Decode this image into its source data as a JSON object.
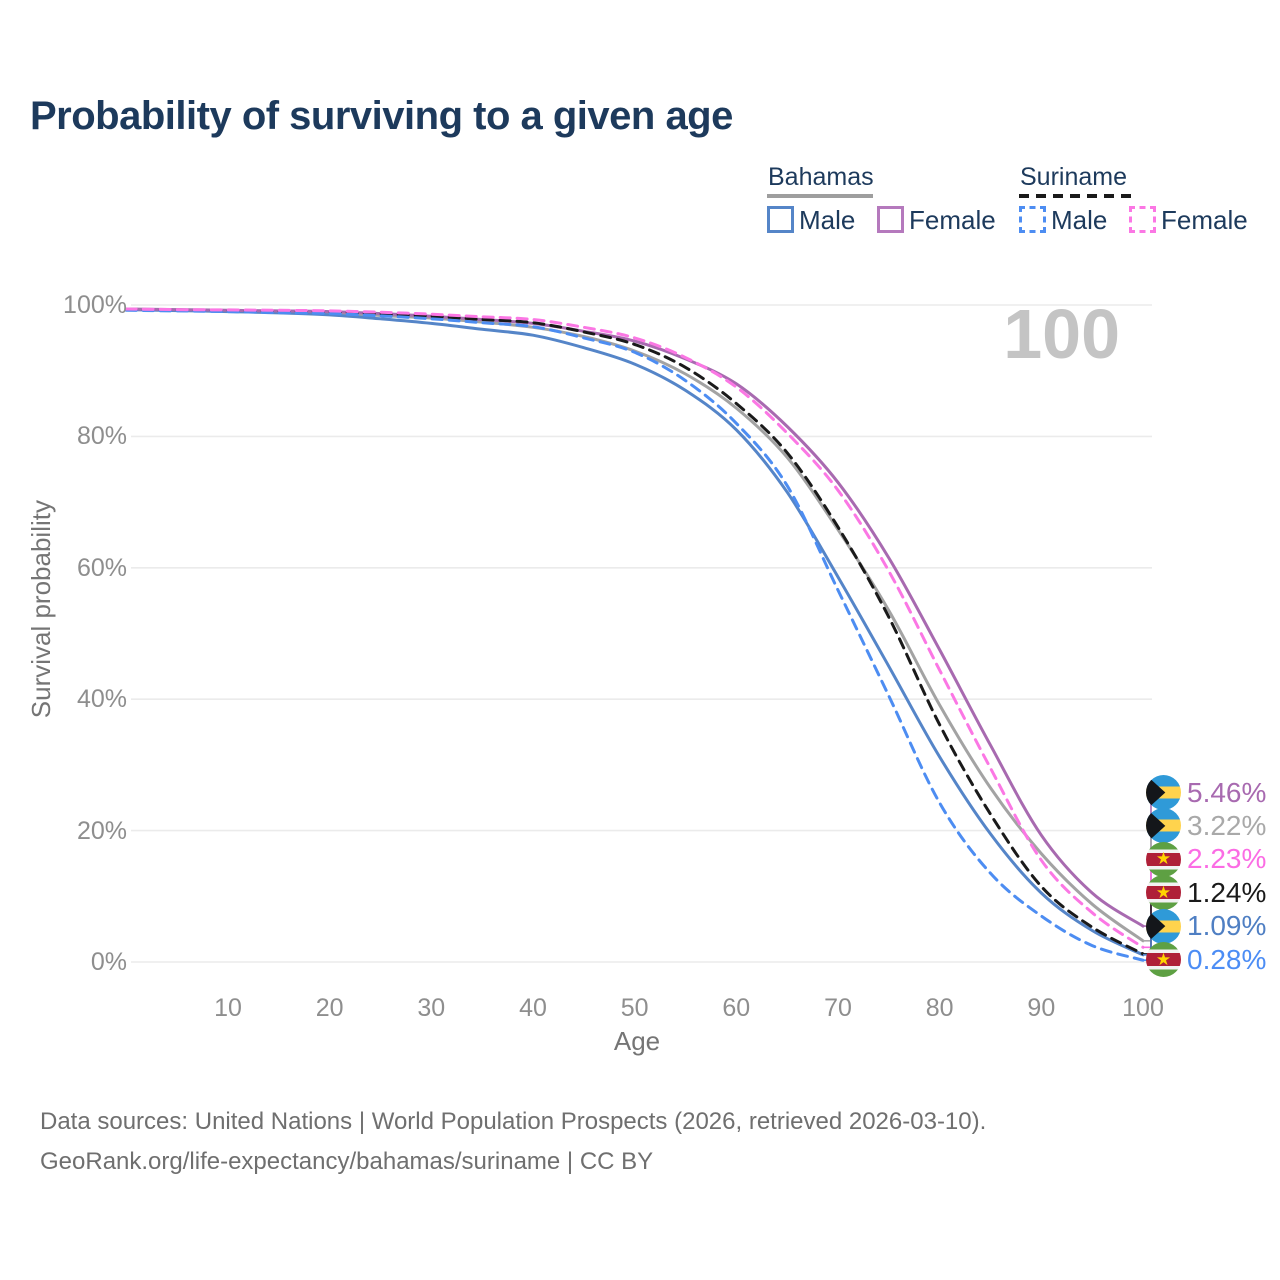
{
  "title": "Probability of surviving to a given age",
  "legend": {
    "groups": [
      {
        "name": "Bahamas",
        "line_style": "solid",
        "underline_color": "#9e9e9e",
        "items": [
          {
            "label": "Male",
            "color": "#5585c8",
            "dashed": false
          },
          {
            "label": "Female",
            "color": "#b579bd",
            "dashed": false
          }
        ]
      },
      {
        "name": "Suriname",
        "line_style": "dashed",
        "underline_color": "#1a1a1a",
        "items": [
          {
            "label": "Male",
            "color": "#4d8df2",
            "dashed": true
          },
          {
            "label": "Female",
            "color": "#fb77e4",
            "dashed": true
          }
        ]
      }
    ]
  },
  "watermark": "100",
  "axes": {
    "y_label": "Survival probability",
    "x_label": "Age",
    "y_ticks": [
      {
        "label": "100%",
        "value": 100
      },
      {
        "label": "80%",
        "value": 80
      },
      {
        "label": "60%",
        "value": 60
      },
      {
        "label": "40%",
        "value": 40
      },
      {
        "label": "20%",
        "value": 20
      },
      {
        "label": "0%",
        "value": 0
      }
    ],
    "x_ticks": [
      10,
      20,
      30,
      40,
      50,
      60,
      70,
      80,
      90,
      100
    ]
  },
  "chart_data": {
    "type": "line",
    "title": "Probability of surviving to a given age",
    "xlabel": "Age",
    "ylabel": "Survival probability",
    "xlim": [
      0,
      100
    ],
    "ylim": [
      0,
      100
    ],
    "grid": "horizontal",
    "legend_position": "top-right",
    "x": [
      0,
      5,
      10,
      15,
      20,
      25,
      30,
      35,
      40,
      45,
      50,
      55,
      60,
      65,
      70,
      75,
      80,
      85,
      90,
      95,
      100
    ],
    "series": [
      {
        "name": "Bahamas (both sexes)",
        "country": "Bahamas",
        "sex": "all",
        "color": "#a3a3a3",
        "dashed": false,
        "values": [
          99.35,
          99.25,
          99.1,
          98.95,
          98.8,
          98.4,
          98.0,
          97.4,
          96.6,
          95.2,
          93.0,
          89.5,
          84.3,
          76.8,
          65.8,
          53.5,
          39.1,
          26.5,
          16.5,
          8.8,
          3.22
        ]
      },
      {
        "name": "Bahamas Male",
        "country": "Bahamas",
        "sex": "male",
        "color": "#5585c8",
        "dashed": false,
        "values": [
          99.3,
          99.15,
          99.0,
          98.8,
          98.5,
          97.9,
          97.2,
          96.3,
          95.4,
          93.5,
          91.0,
          87.0,
          81.0,
          71.5,
          58.6,
          45.0,
          31.2,
          19.5,
          10.5,
          4.8,
          1.09
        ]
      },
      {
        "name": "Bahamas Female",
        "country": "Bahamas",
        "sex": "female",
        "color": "#a86ab0",
        "dashed": false,
        "values": [
          99.4,
          99.3,
          99.2,
          99.1,
          99.0,
          98.7,
          98.3,
          97.8,
          97.2,
          96.0,
          94.5,
          91.8,
          88.0,
          81.5,
          73.0,
          61.5,
          47.5,
          33.0,
          19.3,
          10.5,
          5.46
        ]
      },
      {
        "name": "Suriname (both sexes)",
        "country": "Suriname",
        "sex": "all",
        "color": "#1a1a1a",
        "dashed": true,
        "values": [
          99.3,
          99.25,
          99.15,
          99.05,
          98.95,
          98.65,
          98.3,
          97.8,
          97.3,
          95.9,
          94.0,
          90.5,
          85.0,
          77.5,
          66.2,
          52.5,
          36.1,
          22.5,
          11.5,
          5.3,
          1.24
        ]
      },
      {
        "name": "Suriname Male",
        "country": "Suriname",
        "sex": "male",
        "color": "#4d8df2",
        "dashed": true,
        "values": [
          99.2,
          99.1,
          99.0,
          98.85,
          98.7,
          98.35,
          97.9,
          97.3,
          96.7,
          95.0,
          92.8,
          88.5,
          82.0,
          72.5,
          56.6,
          40.5,
          24.2,
          13.5,
          7.0,
          2.5,
          0.28
        ]
      },
      {
        "name": "Suriname Female",
        "country": "Suriname",
        "sex": "female",
        "color": "#fb77e4",
        "dashed": true,
        "values": [
          99.4,
          99.3,
          99.25,
          99.2,
          99.1,
          98.9,
          98.6,
          98.2,
          97.8,
          96.6,
          95.0,
          92.0,
          87.5,
          80.5,
          71.8,
          59.5,
          44.4,
          29.5,
          15.5,
          7.5,
          2.23
        ]
      }
    ]
  },
  "end_labels": [
    {
      "text": "5.46%",
      "end_value": 5.46,
      "color": "#a86ab0",
      "flag": "bahamas",
      "series": "Bahamas Female"
    },
    {
      "text": "3.22%",
      "end_value": 3.22,
      "color": "#a9a9a9",
      "flag": "bahamas",
      "series": "Bahamas (both sexes)"
    },
    {
      "text": "2.23%",
      "end_value": 2.23,
      "color": "#fb6ce4",
      "flag": "suriname",
      "series": "Suriname Female"
    },
    {
      "text": "1.24%",
      "end_value": 1.24,
      "color": "#1a1a1a",
      "flag": "suriname",
      "series": "Suriname (both sexes)"
    },
    {
      "text": "1.09%",
      "end_value": 1.09,
      "color": "#4f7fc3",
      "flag": "bahamas",
      "series": "Bahamas Male"
    },
    {
      "text": "0.28%",
      "end_value": 0.28,
      "color": "#4c8df5",
      "flag": "suriname",
      "series": "Suriname Male"
    }
  ],
  "footer": {
    "line1": "Data sources: United Nations | World Population Prospects (2026, retrieved 2026-03-10).",
    "line2": "GeoRank.org/life-expectancy/bahamas/suriname | CC BY"
  }
}
